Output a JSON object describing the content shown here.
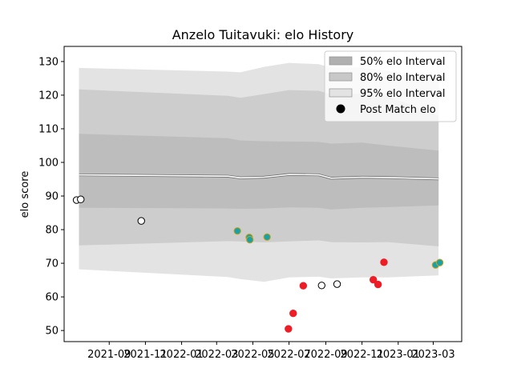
{
  "chart_data": {
    "type": "scatter",
    "title": "Anzelo Tuitavuki: elo History",
    "xlabel": "",
    "ylabel": "elo score",
    "ylim": [
      46.7,
      134.5
    ],
    "xlim": [
      "2021-06-17",
      "2023-04-18"
    ],
    "grid": false,
    "legend_position": "top-right",
    "x_ticks": [
      "2021-09",
      "2021-11",
      "2022-01",
      "2022-03",
      "2022-05",
      "2022-07",
      "2022-09",
      "2022-11",
      "2023-01",
      "2023-03"
    ],
    "y_ticks": [
      50,
      60,
      70,
      80,
      90,
      100,
      110,
      120,
      130
    ],
    "legend": [
      {
        "label": "50% elo Interval",
        "kind": "patch",
        "color": "#b0b0b0"
      },
      {
        "label": "80% elo Interval",
        "kind": "patch",
        "color": "#c8c8c8"
      },
      {
        "label": "95% elo Interval",
        "kind": "patch",
        "color": "#e3e3e3"
      },
      {
        "label": "Post Match elo",
        "kind": "marker",
        "color": "#000000"
      }
    ],
    "bands": {
      "x": [
        "2021-07-12",
        "2022-03-20",
        "2022-04-10",
        "2022-05-20",
        "2022-07-01",
        "2022-08-20",
        "2022-09-10",
        "2022-11-01",
        "2022-12-15",
        "2023-03-10"
      ],
      "median": [
        96.3,
        95.9,
        95.4,
        95.6,
        96.4,
        96.3,
        95.3,
        95.6,
        95.5,
        95.1
      ],
      "p50_low": [
        86.5,
        86.3,
        86.2,
        86.3,
        86.6,
        86.5,
        86.0,
        86.5,
        86.7,
        87.2
      ],
      "p50_high": [
        108.5,
        107.2,
        106.5,
        106.3,
        106.2,
        106.1,
        105.6,
        105.9,
        105.0,
        103.5
      ],
      "p80_low": [
        75.3,
        76.6,
        76.5,
        76.2,
        76.5,
        76.8,
        76.3,
        76.2,
        76.3,
        75.0
      ],
      "p80_high": [
        121.7,
        119.8,
        119.2,
        120.3,
        121.5,
        121.3,
        120.2,
        120.5,
        119.7,
        113.9
      ],
      "p95_low": [
        68.2,
        65.9,
        65.3,
        64.5,
        65.8,
        66.0,
        65.5,
        65.8,
        65.8,
        66.4
      ],
      "p95_high": [
        128.1,
        127.0,
        126.8,
        128.4,
        129.6,
        129.2,
        128.2,
        128.2,
        127.2,
        125.0
      ]
    },
    "series": [
      {
        "category": "match",
        "points": [
          {
            "x": "2021-07-08",
            "y": 88.8
          },
          {
            "x": "2021-07-15",
            "y": 89.0
          },
          {
            "x": "2021-10-25",
            "y": 82.6
          },
          {
            "x": "2022-04-05",
            "y": 79.6
          },
          {
            "x": "2022-04-25",
            "y": 77.7
          },
          {
            "x": "2022-04-26",
            "y": 77.0
          },
          {
            "x": "2022-05-25",
            "y": 77.8
          },
          {
            "x": "2022-06-30",
            "y": 50.5
          },
          {
            "x": "2022-07-08",
            "y": 55.1
          },
          {
            "x": "2022-07-25",
            "y": 63.3
          },
          {
            "x": "2022-08-25",
            "y": 63.4
          },
          {
            "x": "2022-09-20",
            "y": 63.8
          },
          {
            "x": "2022-11-20",
            "y": 65.1
          },
          {
            "x": "2022-11-28",
            "y": 63.7
          },
          {
            "x": "2022-12-08",
            "y": 70.3
          },
          {
            "x": "2023-03-05",
            "y": 69.5
          },
          {
            "x": "2023-03-12",
            "y": 70.2
          }
        ],
        "styles": [
          "white",
          "white",
          "white",
          "teal",
          "teal",
          "teal",
          "teal",
          "red",
          "red",
          "red",
          "white",
          "white",
          "red",
          "red",
          "red",
          "teal",
          "teal"
        ]
      }
    ],
    "marker_colors": {
      "white": {
        "fill": "#ffffff",
        "stroke": "#000000"
      },
      "teal": {
        "fill": "#17a2a8",
        "stroke": "#d4a017"
      },
      "red": {
        "fill": "#ee1c25",
        "stroke": "#ee1c25"
      }
    },
    "median_color": "#ffffff",
    "median_edge_color": "#707070"
  }
}
